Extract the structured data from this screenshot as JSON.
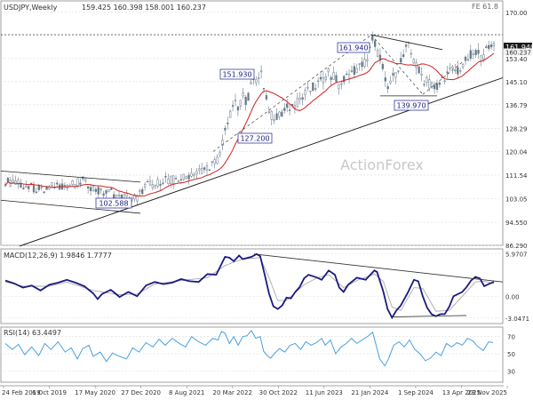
{
  "chart_data": [
    {
      "type": "candlestick",
      "panel": "price",
      "header": {
        "symbol_label": "USDJPY,Weekly",
        "ohlc_text": "159.425 160.398 158.001 160.237",
        "fib_label": "FE 61.8"
      },
      "watermark": "ActionForex",
      "yticks": [
        "170.00",
        "161.940",
        "160.237",
        "153.40",
        "145.10",
        "136.79",
        "128.29",
        "120.04",
        "111.54",
        "103.05",
        "94.550",
        "86.290"
      ],
      "price_labels": {
        "level": "161.940",
        "last": "160.237"
      },
      "annotations": [
        "151.930",
        "161.940",
        "127.200",
        "139.970",
        "102.588"
      ],
      "x_tick_labels": [
        "24 Feb 2019",
        "6 Oct 2019",
        "17 May 2020",
        "27 Dec 2020",
        "8 Aug 2021",
        "20 Mar 2022",
        "30 Oct 2022",
        "11 Jun 2023",
        "21 Jan 2024",
        "1 Sep 2024",
        "13 Apr 2025",
        "23 Nov 2025"
      ],
      "ylim": [
        86.29,
        172.5
      ],
      "close_path": [
        [
          0,
          109.3
        ],
        [
          18,
          108.2
        ],
        [
          30,
          107.0
        ],
        [
          45,
          105.6
        ],
        [
          55,
          107.8
        ],
        [
          75,
          108.0
        ],
        [
          85,
          108.9
        ],
        [
          88,
          109.4
        ],
        [
          100,
          106.8
        ],
        [
          110,
          104.8
        ],
        [
          120,
          105.5
        ],
        [
          130,
          103.3
        ],
        [
          140,
          104.0
        ],
        [
          150,
          103.4
        ],
        [
          160,
          108.1
        ],
        [
          170,
          107.8
        ],
        [
          180,
          110.2
        ],
        [
          190,
          109.8
        ],
        [
          205,
          110.6
        ],
        [
          215,
          112.9
        ],
        [
          225,
          113.2
        ],
        [
          235,
          115.6
        ],
        [
          240,
          116.0
        ],
        [
          245,
          120.3
        ],
        [
          248,
          125.0
        ],
        [
          250,
          128.8
        ],
        [
          255,
          131.3
        ],
        [
          258,
          135.9
        ],
        [
          260,
          137.8
        ],
        [
          265,
          134.8
        ],
        [
          270,
          140.1
        ],
        [
          275,
          138.1
        ],
        [
          280,
          143.9
        ],
        [
          286,
          146.3
        ],
        [
          290,
          149.0
        ],
        [
          292,
          148.4
        ],
        [
          296,
          139.6
        ],
        [
          300,
          135.8
        ],
        [
          305,
          130.7
        ],
        [
          310,
          132.6
        ],
        [
          320,
          135.4
        ],
        [
          330,
          137.0
        ],
        [
          340,
          140.1
        ],
        [
          350,
          142.8
        ],
        [
          360,
          145.1
        ],
        [
          365,
          148.0
        ],
        [
          375,
          146.8
        ],
        [
          380,
          143.1
        ],
        [
          385,
          145.7
        ],
        [
          395,
          149.0
        ],
        [
          405,
          150.6
        ],
        [
          412,
          152.7
        ],
        [
          418,
          160.7
        ],
        [
          422,
          157.1
        ],
        [
          428,
          152.7
        ],
        [
          434,
          142.1
        ],
        [
          440,
          145.7
        ],
        [
          445,
          149.0
        ],
        [
          452,
          154.0
        ],
        [
          458,
          158.1
        ],
        [
          465,
          152.6
        ],
        [
          472,
          148.0
        ],
        [
          478,
          145.1
        ],
        [
          485,
          143.4
        ],
        [
          490,
          142.9
        ],
        [
          500,
          147.2
        ],
        [
          510,
          149.0
        ],
        [
          520,
          150.4
        ],
        [
          528,
          154.1
        ],
        [
          536,
          155.7
        ],
        [
          542,
          154.2
        ],
        [
          548,
          156.3
        ],
        [
          555,
          159.4
        ]
      ],
      "series": [
        {
          "color": "#cc2222"
        },
        {
          "color": "#222222"
        }
      ],
      "scale": "linear",
      "grid": true
    },
    {
      "type": "line",
      "panel": "macd",
      "header": "MACD(12,26,9) 1.9846 1.7777",
      "yticks": [
        "5.9707",
        "0.00",
        "-3.0471"
      ],
      "ylim": [
        -3.7,
        6.5
      ],
      "macd_path": [
        [
          0,
          2.2
        ],
        [
          10,
          1.8
        ],
        [
          20,
          1.2
        ],
        [
          30,
          1.5
        ],
        [
          40,
          0.8
        ],
        [
          50,
          1.6
        ],
        [
          60,
          1.9
        ],
        [
          70,
          2.3
        ],
        [
          80,
          1.9
        ],
        [
          90,
          1.4
        ],
        [
          100,
          0.4
        ],
        [
          105,
          -0.4
        ],
        [
          110,
          0.3
        ],
        [
          120,
          0.9
        ],
        [
          125,
          0.4
        ],
        [
          130,
          -0.1
        ],
        [
          140,
          0.6
        ],
        [
          150,
          0.0
        ],
        [
          160,
          1.5
        ],
        [
          170,
          2.0
        ],
        [
          180,
          1.7
        ],
        [
          190,
          1.9
        ],
        [
          200,
          2.4
        ],
        [
          210,
          2.1
        ],
        [
          220,
          2.0
        ],
        [
          230,
          3.1
        ],
        [
          240,
          3.0
        ],
        [
          250,
          5.5
        ],
        [
          255,
          5.4
        ],
        [
          260,
          4.9
        ],
        [
          266,
          5.7
        ],
        [
          270,
          5.2
        ],
        [
          280,
          5.5
        ],
        [
          286,
          5.9
        ],
        [
          290,
          5.6
        ],
        [
          295,
          3.1
        ],
        [
          300,
          0.4
        ],
        [
          305,
          -1.4
        ],
        [
          310,
          -1.8
        ],
        [
          315,
          -1.3
        ],
        [
          320,
          -0.2
        ],
        [
          325,
          -0.3
        ],
        [
          330,
          0.6
        ],
        [
          335,
          1.3
        ],
        [
          340,
          2.5
        ],
        [
          345,
          3.0
        ],
        [
          350,
          2.8
        ],
        [
          355,
          2.6
        ],
        [
          360,
          2.3
        ],
        [
          368,
          3.6
        ],
        [
          375,
          3.0
        ],
        [
          380,
          1.2
        ],
        [
          385,
          0.6
        ],
        [
          390,
          1.6
        ],
        [
          395,
          2.1
        ],
        [
          400,
          2.6
        ],
        [
          410,
          2.3
        ],
        [
          420,
          3.6
        ],
        [
          423,
          3.4
        ],
        [
          430,
          0.7
        ],
        [
          435,
          -1.8
        ],
        [
          440,
          -3.0
        ],
        [
          445,
          -2.0
        ],
        [
          450,
          -1.3
        ],
        [
          458,
          0.5
        ],
        [
          465,
          2.3
        ],
        [
          470,
          2.1
        ],
        [
          475,
          0.0
        ],
        [
          480,
          -1.6
        ],
        [
          485,
          -2.5
        ],
        [
          490,
          -2.8
        ],
        [
          495,
          -2.5
        ],
        [
          500,
          -2.5
        ],
        [
          505,
          -1.5
        ],
        [
          510,
          0.0
        ],
        [
          520,
          0.6
        ],
        [
          525,
          1.3
        ],
        [
          530,
          2.2
        ],
        [
          535,
          2.7
        ],
        [
          540,
          2.5
        ],
        [
          545,
          1.4
        ],
        [
          550,
          1.7
        ],
        [
          556,
          2.0
        ]
      ],
      "signal_path": [
        [
          0,
          2.0
        ],
        [
          20,
          1.4
        ],
        [
          50,
          1.4
        ],
        [
          70,
          2.0
        ],
        [
          100,
          0.8
        ],
        [
          130,
          0.2
        ],
        [
          150,
          0.3
        ],
        [
          170,
          1.7
        ],
        [
          200,
          2.2
        ],
        [
          230,
          2.6
        ],
        [
          250,
          4.3
        ],
        [
          270,
          5.2
        ],
        [
          290,
          5.4
        ],
        [
          300,
          2.6
        ],
        [
          310,
          -0.6
        ],
        [
          320,
          -0.6
        ],
        [
          340,
          1.6
        ],
        [
          355,
          2.6
        ],
        [
          368,
          3.0
        ],
        [
          385,
          1.2
        ],
        [
          400,
          2.2
        ],
        [
          420,
          3.1
        ],
        [
          430,
          2.1
        ],
        [
          440,
          -1.5
        ],
        [
          450,
          -2.0
        ],
        [
          465,
          1.2
        ],
        [
          475,
          1.1
        ],
        [
          490,
          -2.1
        ],
        [
          505,
          -2.0
        ],
        [
          520,
          0.0
        ],
        [
          535,
          2.0
        ],
        [
          545,
          2.1
        ],
        [
          556,
          1.8
        ]
      ],
      "series": [
        {
          "color": "#1a1a80"
        },
        {
          "color": "#aaaaaa"
        }
      ],
      "grid": true
    },
    {
      "type": "line",
      "panel": "rsi",
      "header": "RSI(14) 63.4497",
      "yticks": [
        "70",
        "50",
        "30"
      ],
      "ylim": [
        18,
        80
      ],
      "rsi_path": [
        [
          0,
          62
        ],
        [
          8,
          55
        ],
        [
          15,
          61
        ],
        [
          22,
          49
        ],
        [
          30,
          58
        ],
        [
          38,
          48
        ],
        [
          45,
          62
        ],
        [
          52,
          55
        ],
        [
          60,
          64
        ],
        [
          68,
          52
        ],
        [
          75,
          57
        ],
        [
          82,
          44
        ],
        [
          88,
          56
        ],
        [
          95,
          60
        ],
        [
          100,
          47
        ],
        [
          108,
          52
        ],
        [
          115,
          41
        ],
        [
          122,
          51
        ],
        [
          130,
          47
        ],
        [
          138,
          44
        ],
        [
          145,
          57
        ],
        [
          152,
          52
        ],
        [
          160,
          63
        ],
        [
          168,
          58
        ],
        [
          175,
          67
        ],
        [
          182,
          60
        ],
        [
          190,
          68
        ],
        [
          198,
          62
        ],
        [
          205,
          58
        ],
        [
          212,
          70
        ],
        [
          220,
          64
        ],
        [
          228,
          60
        ],
        [
          236,
          68
        ],
        [
          242,
          66
        ],
        [
          246,
          76
        ],
        [
          250,
          74
        ],
        [
          255,
          62
        ],
        [
          260,
          70
        ],
        [
          265,
          60
        ],
        [
          270,
          70
        ],
        [
          275,
          71
        ],
        [
          280,
          77
        ],
        [
          285,
          68
        ],
        [
          290,
          70
        ],
        [
          294,
          53
        ],
        [
          298,
          48
        ],
        [
          302,
          45
        ],
        [
          306,
          50
        ],
        [
          312,
          56
        ],
        [
          318,
          52
        ],
        [
          324,
          60
        ],
        [
          330,
          62
        ],
        [
          336,
          55
        ],
        [
          342,
          64
        ],
        [
          348,
          60
        ],
        [
          354,
          63
        ],
        [
          360,
          68
        ],
        [
          364,
          60
        ],
        [
          370,
          66
        ],
        [
          376,
          50
        ],
        [
          382,
          58
        ],
        [
          388,
          62
        ],
        [
          394,
          68
        ],
        [
          400,
          62
        ],
        [
          406,
          66
        ],
        [
          412,
          70
        ],
        [
          418,
          75
        ],
        [
          422,
          60
        ],
        [
          426,
          44
        ],
        [
          432,
          36
        ],
        [
          436,
          44
        ],
        [
          442,
          60
        ],
        [
          448,
          64
        ],
        [
          454,
          58
        ],
        [
          460,
          66
        ],
        [
          466,
          55
        ],
        [
          472,
          50
        ],
        [
          478,
          42
        ],
        [
          484,
          45
        ],
        [
          490,
          52
        ],
        [
          496,
          48
        ],
        [
          502,
          62
        ],
        [
          508,
          58
        ],
        [
          514,
          63
        ],
        [
          520,
          60
        ],
        [
          526,
          68
        ],
        [
          532,
          65
        ],
        [
          538,
          58
        ],
        [
          544,
          54
        ],
        [
          550,
          64
        ],
        [
          555,
          63
        ]
      ],
      "series": [
        {
          "color": "#4aa0e0"
        }
      ],
      "grid": true
    }
  ]
}
